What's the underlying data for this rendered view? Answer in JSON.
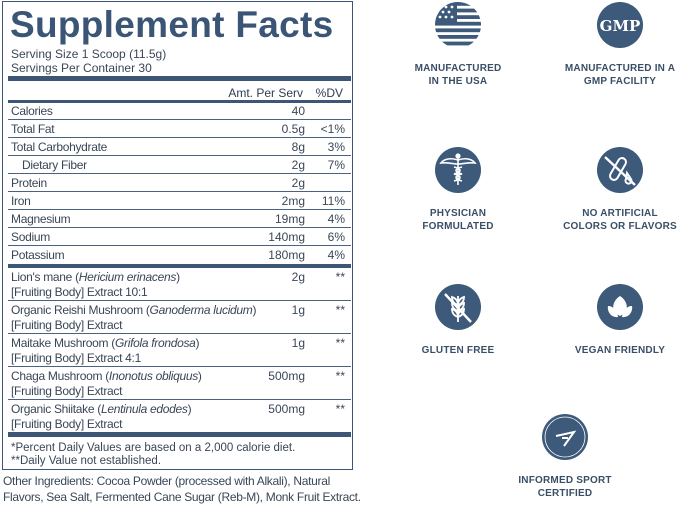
{
  "title": "Supplement Facts",
  "serving_size": "Serving Size 1 Scoop (11.5g)",
  "servings_per_container": "Servings Per Container 30",
  "header": {
    "amount": "Amt. Per Serv",
    "dv": "%DV"
  },
  "nutrients": [
    {
      "name": "Calories",
      "amount": "40",
      "dv": ""
    },
    {
      "name": "Total Fat",
      "amount": "0.5g",
      "dv": "<1%"
    },
    {
      "name": "Total Carbohydrate",
      "amount": "8g",
      "dv": "3%"
    },
    {
      "name": "Dietary Fiber",
      "amount": "2g",
      "dv": "7%"
    },
    {
      "name": "Protein",
      "amount": "2g",
      "dv": ""
    },
    {
      "name": "Iron",
      "amount": "2mg",
      "dv": "11%"
    },
    {
      "name": "Magnesium",
      "amount": "19mg",
      "dv": "4%"
    },
    {
      "name": "Sodium",
      "amount": "140mg",
      "dv": "6%"
    },
    {
      "name": "Potassium",
      "amount": "180mg",
      "dv": "4%"
    }
  ],
  "extracts": [
    {
      "name": "Lion's mane (",
      "latin": "Hericium erinacens",
      "close": ")",
      "line2": "[Fruiting Body] Extract 10:1",
      "amount": "2g",
      "dv": "**"
    },
    {
      "name": "Organic Reishi Mushroom (",
      "latin": "Ganoderma lucidum",
      "close": ")",
      "line2": "[Fruiting Body] Extract",
      "amount": "1g",
      "dv": "**"
    },
    {
      "name": "Maitake Mushroom (",
      "latin": "Grifola frondosa",
      "close": ")",
      "line2": "[Fruiting Body] Extract 4:1",
      "amount": "1g",
      "dv": "**"
    },
    {
      "name": "Chaga Mushroom (",
      "latin": "Inonotus obliquus",
      "close": ")",
      "line2": "[Fruiting Body] Extract",
      "amount": "500mg",
      "dv": "**"
    },
    {
      "name": "Organic Shiitake (",
      "latin": "Lentinula edodes",
      "close": ")",
      "line2": "[Fruiting Body] Extract",
      "amount": "500mg",
      "dv": "**"
    }
  ],
  "footnotes": [
    "*Percent Daily Values are based on a 2,000 calorie diet.",
    "**Daily Value not established."
  ],
  "other_ingredients": [
    "Other Ingredients: Cocoa Powder (processed with Alkali), Natural",
    "Flavors, Sea Salt, Fermented Cane Sugar (Reb-M), Monk Fruit Extract."
  ],
  "badges": [
    {
      "icon": "usa-flag-icon",
      "l1": "MANUFACTURED",
      "l2": "IN THE USA"
    },
    {
      "icon": "gmp-icon",
      "l1": "MANUFACTURED IN A",
      "l2": "GMP FACILITY",
      "text": "GMP"
    },
    {
      "icon": "caduceus-icon",
      "l1": "PHYSICIAN",
      "l2": "FORMULATED"
    },
    {
      "icon": "no-artificial-icon",
      "l1": "NO ARTIFICIAL",
      "l2": "COLORS OR FLAVORS"
    },
    {
      "icon": "gluten-free-icon",
      "l1": "GLUTEN FREE",
      "l2": ""
    },
    {
      "icon": "vegan-leaf-icon",
      "l1": "VEGAN FRIENDLY",
      "l2": ""
    },
    {
      "icon": "informed-sport-icon",
      "l1": "INFORMED SPORT",
      "l2": "CERTIFIED",
      "text": "INFORMED"
    }
  ],
  "accent_color": "#3d5a7a"
}
